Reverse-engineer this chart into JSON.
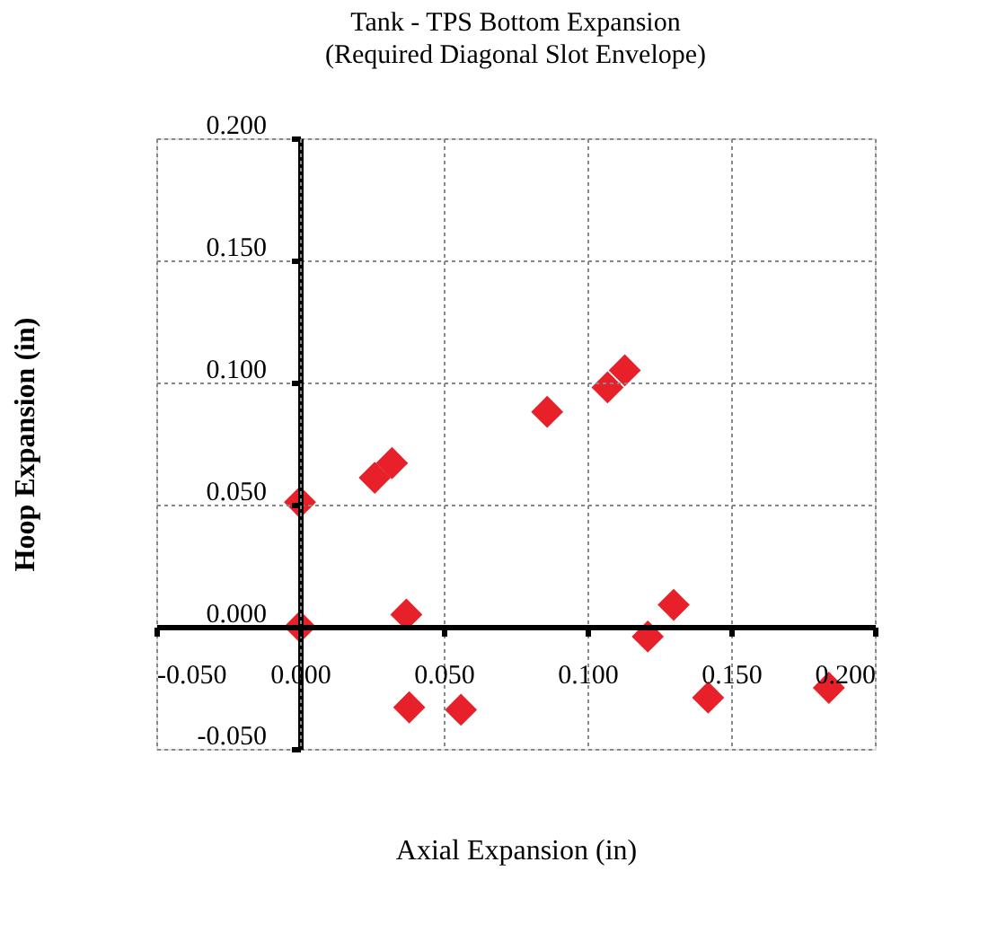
{
  "chart_data": {
    "type": "scatter",
    "title": "Tank - TPS Bottom Expansion",
    "subtitle": "(Required Diagonal Slot Envelope)",
    "xlabel": "Axial Expansion (in)",
    "ylabel": "Hoop Expansion (in)",
    "x": [
      0.0,
      0.0,
      0.026,
      0.032,
      0.037,
      0.038,
      0.056,
      0.086,
      0.107,
      0.113,
      0.121,
      0.13,
      0.142,
      0.184
    ],
    "series": [
      {
        "color": "#e8202a",
        "values": [
          0.051,
          0.0,
          0.061,
          0.067,
          0.005,
          -0.033,
          -0.034,
          0.088,
          0.098,
          0.105,
          -0.004,
          0.009,
          -0.029,
          -0.025
        ]
      }
    ],
    "xlim": [
      -0.05,
      0.2
    ],
    "ylim": [
      -0.05,
      0.2
    ],
    "xticks": [
      {
        "value": -0.05,
        "label": "-0.050"
      },
      {
        "value": 0,
        "label": "0.000"
      },
      {
        "value": 0.05,
        "label": "0.050"
      },
      {
        "value": 0.1,
        "label": "0.100"
      },
      {
        "value": 0.15,
        "label": "0.150"
      },
      {
        "value": 0.2,
        "label": "0.200"
      }
    ],
    "yticks": [
      {
        "value": -0.05,
        "label": "-0.050"
      },
      {
        "value": 0,
        "label": "0.000"
      },
      {
        "value": 0.05,
        "label": "0.050"
      },
      {
        "value": 0.1,
        "label": "0.100"
      },
      {
        "value": 0.15,
        "label": "0.150"
      },
      {
        "value": 0.2,
        "label": "0.200"
      }
    ],
    "grid": true,
    "marker": "diamond",
    "legend": false
  }
}
